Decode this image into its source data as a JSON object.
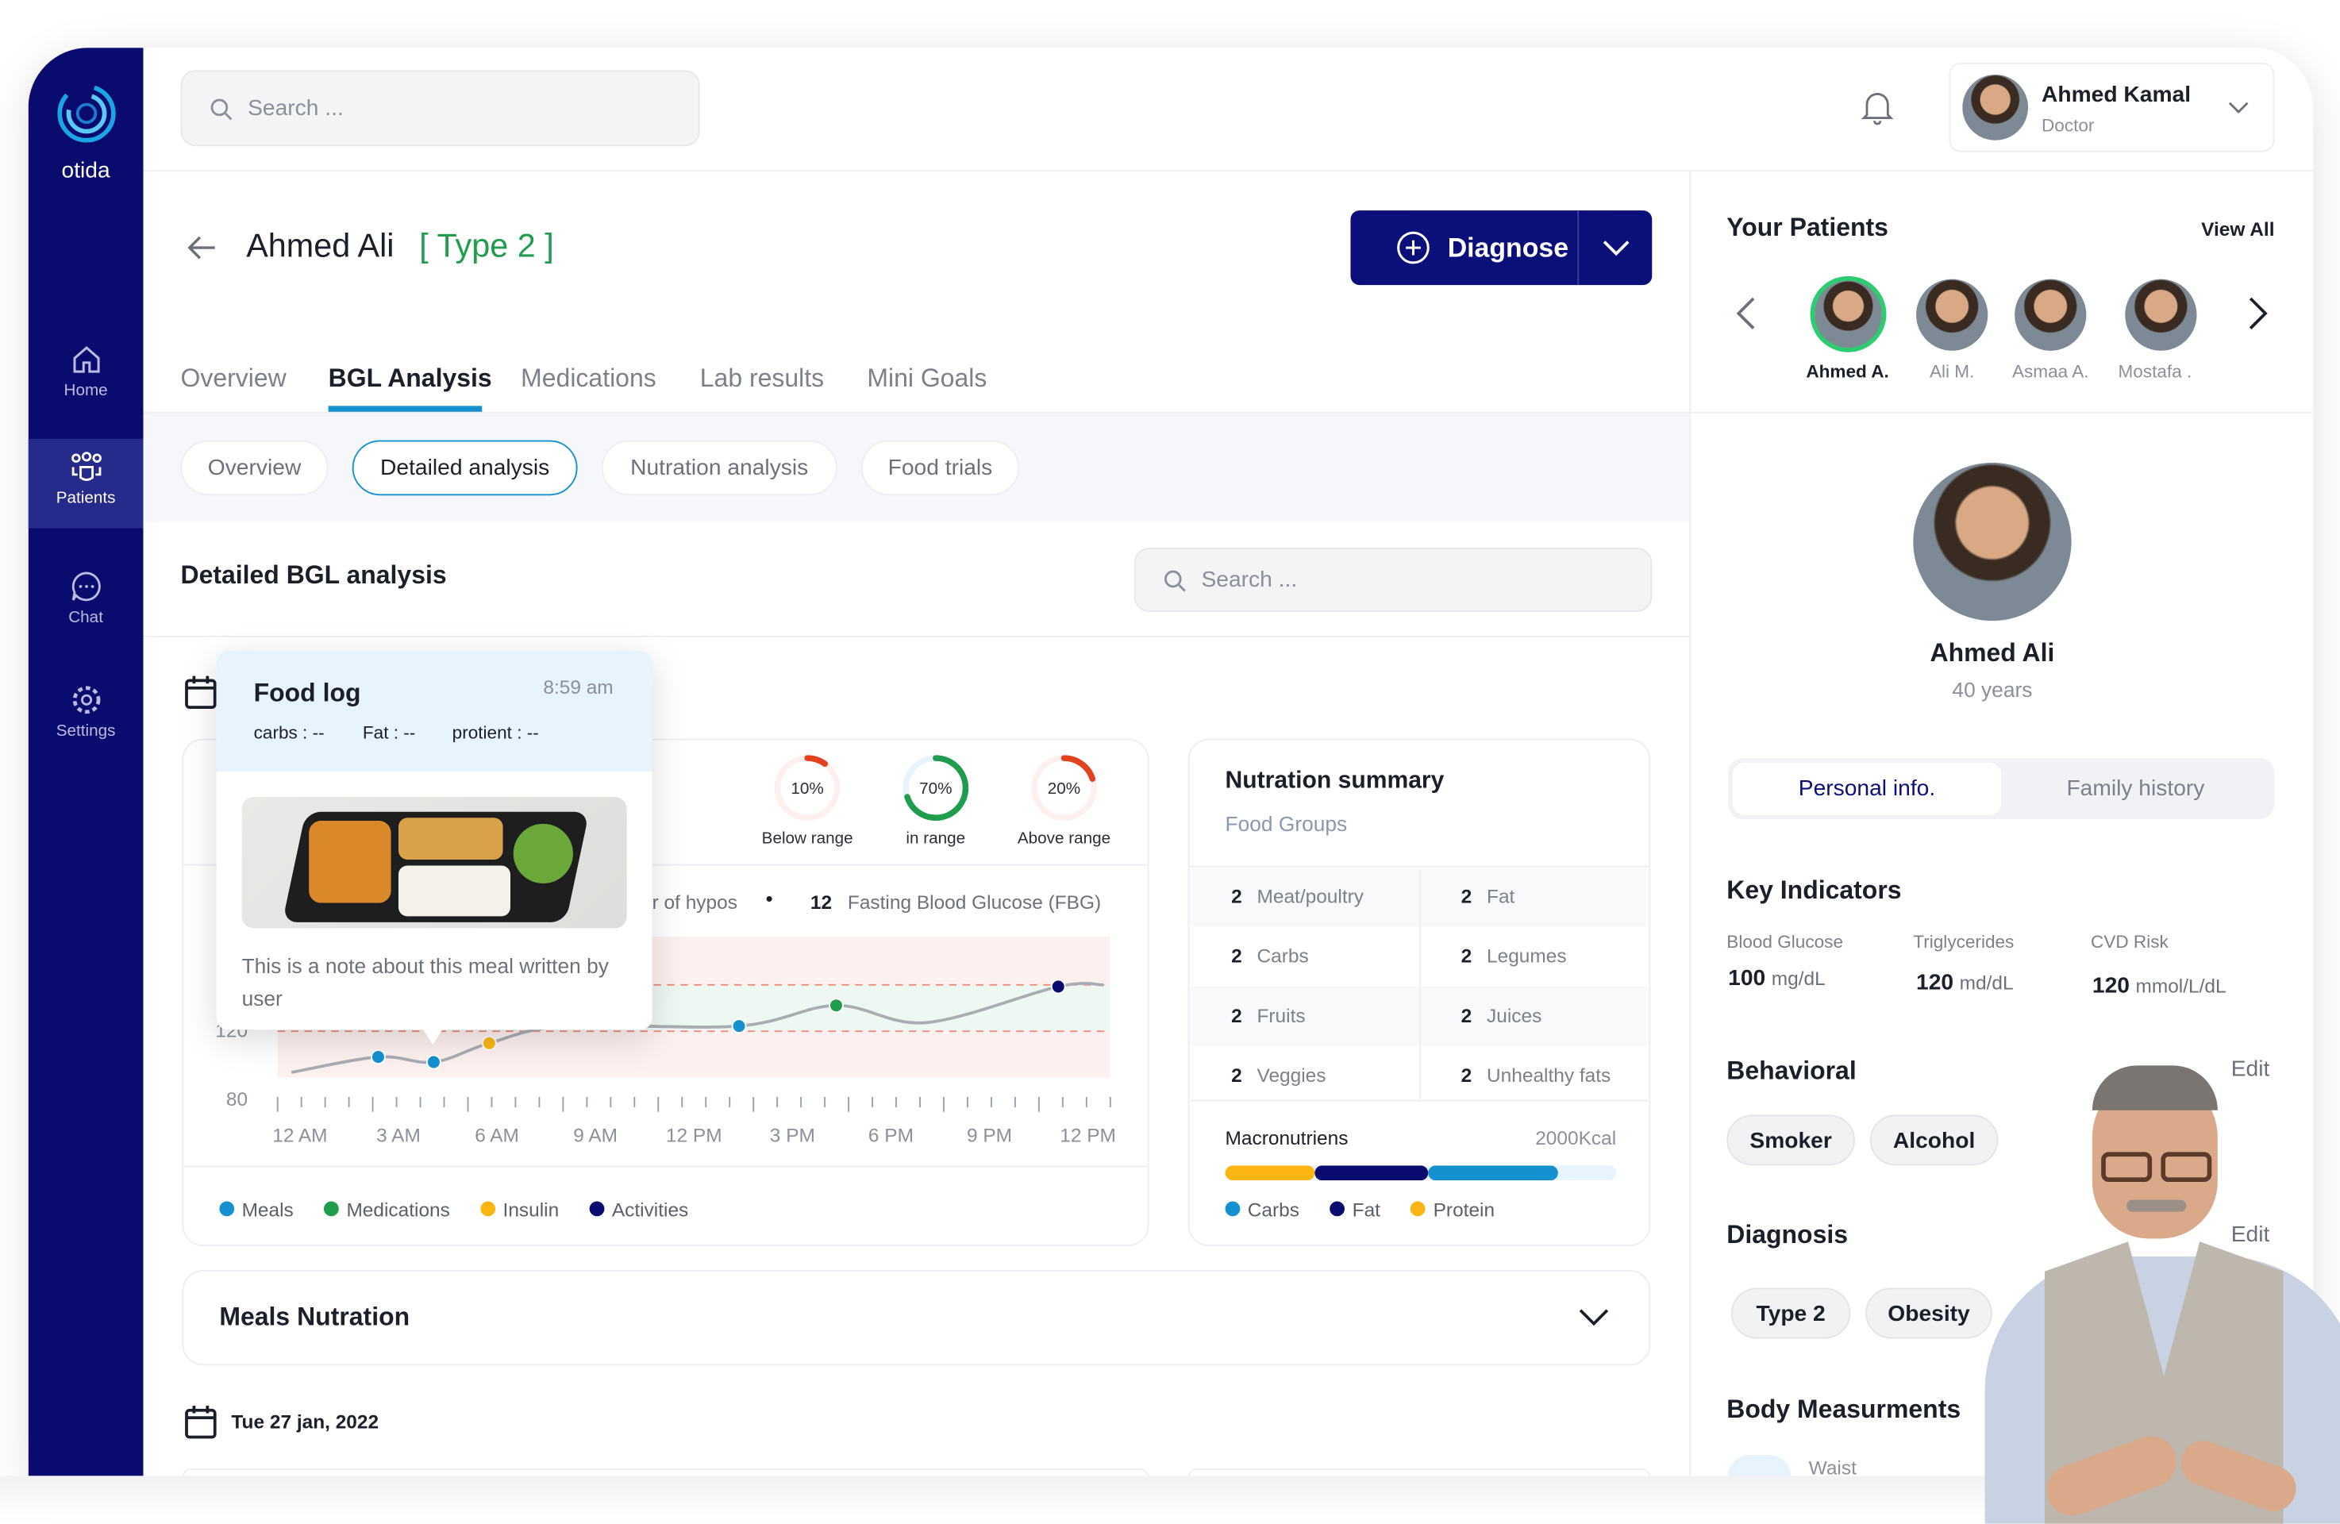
{
  "app": {
    "brand": "otida"
  },
  "sidebar": {
    "items": [
      {
        "label": "Home",
        "icon": "home-icon"
      },
      {
        "label": "Patients",
        "icon": "patients-icon",
        "active": true
      },
      {
        "label": "Chat",
        "icon": "chat-icon"
      },
      {
        "label": "Settings",
        "icon": "gear-icon"
      }
    ]
  },
  "topbar": {
    "search_placeholder": "Search ...",
    "user": {
      "name": "Ahmed Kamal",
      "role": "Doctor"
    }
  },
  "patient_header": {
    "name": "Ahmed Ali",
    "type": "[ Type 2 ]",
    "diagnose_label": "Diagnose"
  },
  "tabs": [
    {
      "label": "Overview"
    },
    {
      "label": "BGL Analysis",
      "active": true
    },
    {
      "label": "Medications"
    },
    {
      "label": "Lab results"
    },
    {
      "label": "Mini Goals"
    }
  ],
  "subtabs": [
    {
      "label": "Overview"
    },
    {
      "label": "Detailed analysis",
      "active": true
    },
    {
      "label": "Nutration analysis"
    },
    {
      "label": "Food trials"
    }
  ],
  "section": {
    "title": "Detailed BGL analysis",
    "search_placeholder": "Search ..."
  },
  "food_log": {
    "title": "Food log",
    "time": "8:59 am",
    "carbs": "carbs : --",
    "fat": "Fat : --",
    "protein": "protient : --",
    "note": "This is a note about this meal written by user"
  },
  "ranges": [
    {
      "value": 10,
      "label": "Below range",
      "text": "10%",
      "color": "#e3421f"
    },
    {
      "value": 70,
      "label": "in range",
      "text": "70%",
      "color": "#1f9d4c"
    },
    {
      "value": 20,
      "label": "Above range",
      "text": "20%",
      "color": "#e3421f"
    }
  ],
  "stats": {
    "hypos_label": "r of hypos",
    "fbg_value": "12",
    "fbg_label": "Fasting Blood Glucose (FBG)"
  },
  "chart_data": {
    "type": "line",
    "xlabel": "",
    "ylabel": "",
    "x_ticks": [
      "12 AM",
      "3 AM",
      "6 AM",
      "9 AM",
      "12 PM",
      "3 PM",
      "6 PM",
      "9 PM",
      "12 PM"
    ],
    "y_ticks": [
      "80",
      "120"
    ],
    "ylim": [
      80,
      175
    ],
    "target_range": [
      120,
      147
    ],
    "series": [
      {
        "x_hours": [
          0.4,
          2.9,
          4.5,
          6.1,
          8.3,
          13.3,
          16.1,
          18.7,
          22.5,
          23.8
        ],
        "values": [
          96,
          105,
          102,
          113,
          123,
          123,
          135,
          125,
          146,
          147
        ]
      }
    ],
    "markers": [
      {
        "x_hours": 2.9,
        "value": 105,
        "kind": "Meals"
      },
      {
        "x_hours": 4.5,
        "value": 102,
        "kind": "Meals"
      },
      {
        "x_hours": 6.1,
        "value": 113,
        "kind": "Insulin"
      },
      {
        "x_hours": 13.3,
        "value": 123,
        "kind": "Meals"
      },
      {
        "x_hours": 16.1,
        "value": 135,
        "kind": "Medications"
      },
      {
        "x_hours": 22.5,
        "value": 146,
        "kind": "Activities"
      }
    ],
    "legend": [
      {
        "name": "Meals",
        "color": "#1591d0"
      },
      {
        "name": "Medications",
        "color": "#1f9d4c"
      },
      {
        "name": "Insulin",
        "color": "#fbb614"
      },
      {
        "name": "Activities",
        "color": "#0a0b6e"
      }
    ]
  },
  "nutrition": {
    "title": "Nutration summary",
    "subtitle": "Food Groups",
    "rows": [
      [
        {
          "n": "2",
          "label": "Meat/poultry"
        },
        {
          "n": "2",
          "label": "Fat"
        }
      ],
      [
        {
          "n": "2",
          "label": "Carbs"
        },
        {
          "n": "2",
          "label": "Legumes"
        }
      ],
      [
        {
          "n": "2",
          "label": "Fruits"
        },
        {
          "n": "2",
          "label": "Juices"
        }
      ],
      [
        {
          "n": "2",
          "label": "Veggies"
        },
        {
          "n": "2",
          "label": "Unhealthy fats"
        }
      ]
    ],
    "macros_label": "Macronutriens",
    "kcal": "2000Kcal",
    "macros": [
      {
        "name": "Protein",
        "percent": 23,
        "color": "#fbb614"
      },
      {
        "name": "Fat",
        "percent": 29,
        "color": "#0a0b6e"
      },
      {
        "name": "Carbs",
        "percent": 33,
        "color": "#1591d0"
      }
    ],
    "legend": [
      "Carbs",
      "Fat",
      "Protein"
    ]
  },
  "meals_nutrition": {
    "title": "Meals Nutration"
  },
  "date_row": {
    "date": "Tue 27 jan, 2022"
  },
  "patients": {
    "title": "Your Patients",
    "view_all": "View All",
    "list": [
      {
        "name": "Ahmed A.",
        "active": true
      },
      {
        "name": "Ali M."
      },
      {
        "name": "Asmaa A."
      },
      {
        "name": "Mostafa ."
      }
    ]
  },
  "profile": {
    "name": "Ahmed Ali",
    "age": "40 years",
    "toggle": [
      "Personal info.",
      "Family history"
    ],
    "key_title": "Key Indicators",
    "indicators": [
      {
        "label": "Blood Glucose",
        "value": "100",
        "unit": "mg/dL"
      },
      {
        "label": "Triglycerides",
        "value": "120",
        "unit": "md/dL"
      },
      {
        "label": "CVD Risk",
        "value": "120",
        "unit": "mmol/L/dL"
      }
    ],
    "behavioral_title": "Behavioral",
    "edit": "Edit",
    "behavioral": [
      "Smoker",
      "Alcohol"
    ],
    "diagnosis_title": "Diagnosis",
    "diagnosis": [
      "Type 2",
      "Obesity"
    ],
    "body_title": "Body Measurments",
    "waist": "Waist"
  },
  "colors": {
    "navy": "#0a0b6e",
    "accent": "#1591d0",
    "green": "#1f9d4c",
    "red": "#e3421f"
  }
}
